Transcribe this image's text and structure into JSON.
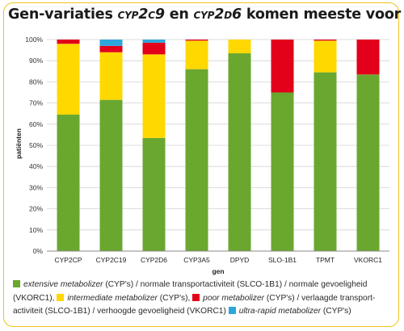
{
  "title": {
    "part1": "Gen-variaties ",
    "gene1": "cyp2c9",
    "part2": " en ",
    "gene2": "cyp2d6",
    "part3": " komen meeste voor"
  },
  "colors": {
    "extensive": "#6aa72f",
    "intermediate": "#ffd800",
    "poor": "#e2001a",
    "ultra": "#2ea6db",
    "frame": "#f0c419"
  },
  "chart_data": {
    "type": "bar",
    "stacked": true,
    "categories": [
      "CYP2CP",
      "CYP2C19",
      "CYP2D6",
      "CYP3A5",
      "DPYD",
      "SLO-1B1",
      "TPMT",
      "VKORC1"
    ],
    "series": [
      {
        "key": "extensive",
        "values": [
          64.5,
          71.5,
          53.5,
          86,
          93.5,
          75,
          84.5,
          83.5
        ]
      },
      {
        "key": "intermediate",
        "values": [
          33.5,
          22.5,
          39.5,
          13.5,
          6.5,
          0,
          15,
          0
        ]
      },
      {
        "key": "poor",
        "values": [
          2,
          3,
          5.5,
          0.5,
          0,
          25,
          0.5,
          16.5
        ]
      },
      {
        "key": "ultra",
        "values": [
          0,
          3,
          1.5,
          0,
          0,
          0,
          0,
          0
        ]
      }
    ],
    "ylim": [
      0,
      100
    ],
    "yticks": [
      "0%",
      "10%",
      "20%",
      "30%",
      "40%",
      "50%",
      "60%",
      "70%",
      "80%",
      "90%",
      "100%"
    ],
    "xlabel": "gen",
    "ylabel": "patiënten"
  },
  "legend": {
    "line1_a": "extensive metabolizer",
    "line1_b": " (CYP's) / normale transportactiviteit (SLCO-1B1) / normale gevoeligheid",
    "line2_a": "(VKORC1), ",
    "line2_b": "intermediate metabolizer",
    "line2_c": " (CYP's), ",
    "line2_d": "poor metabolizer",
    "line2_e": " (CYP's) / verlaagde transport-",
    "line3_a": "activiteit (SLCO-1B1) / verhoogde gevoeligheid (VKORC1) ",
    "line3_b": "ultra-rapid metabolizer",
    "line3_c": " (CYP's)"
  }
}
